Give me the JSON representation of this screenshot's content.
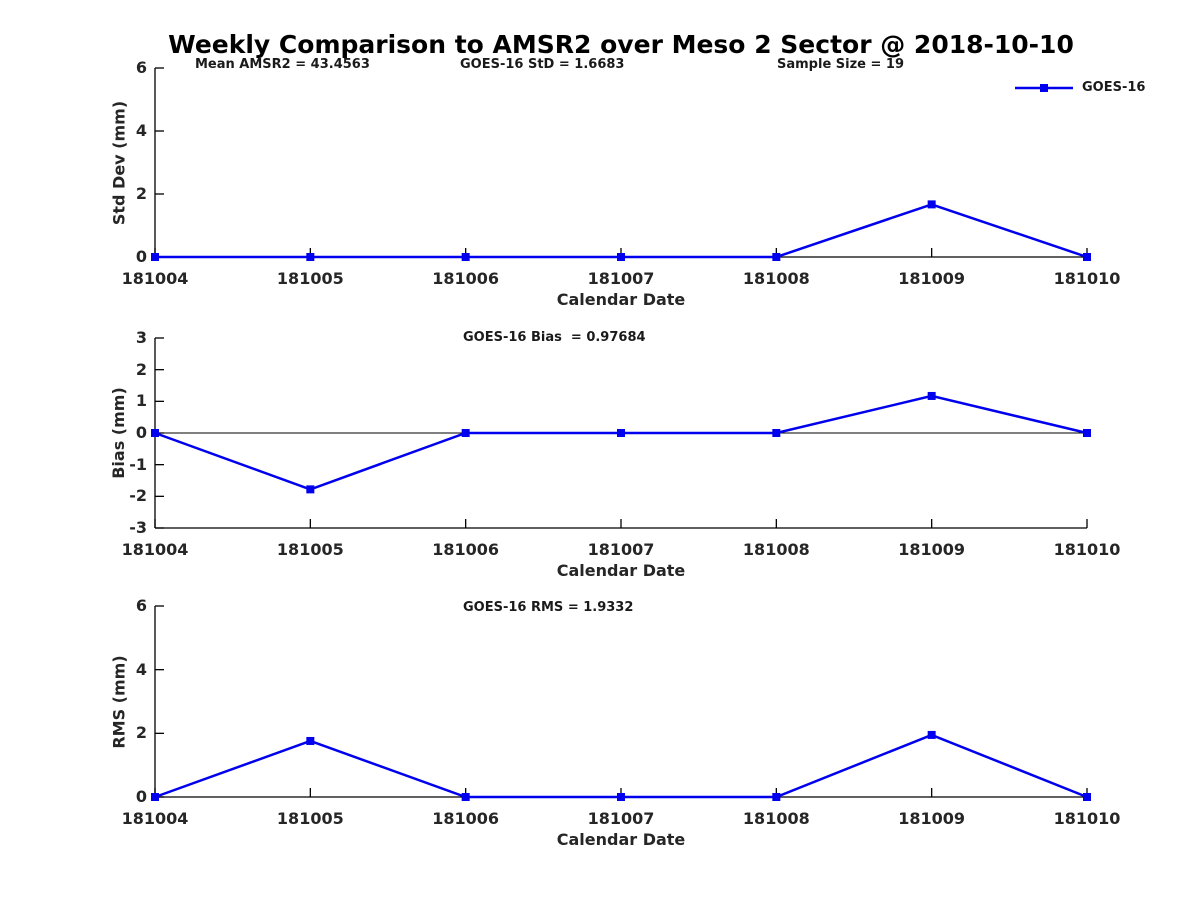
{
  "figure": {
    "title": "Weekly Comparison to AMSR2 over Meso 2 Sector @ 2018-10-10",
    "background": "#ffffff",
    "line_color": "#0000ee",
    "axis_color": "#000000",
    "text_color": "#262626",
    "legend": {
      "label": "GOES-16",
      "position": "top-right",
      "marker": "filled-square"
    },
    "stats": {
      "mean_amsr2": 43.4563,
      "goes16_std": 1.6683,
      "sample_size": 19,
      "goes16_bias": 0.97684,
      "goes16_rms": 1.9332
    }
  },
  "chart_data": [
    {
      "type": "line",
      "annotations": [
        "Mean AMSR2 = 43.4563",
        "GOES-16 StD = 1.6683",
        "Sample Size = 19"
      ],
      "xlabel": "Calendar Date",
      "ylabel": "Std Dev (mm)",
      "categories": [
        "181004",
        "181005",
        "181006",
        "181007",
        "181008",
        "181009",
        "181010"
      ],
      "series": [
        {
          "name": "GOES-16",
          "color": "#0000ee",
          "marker": "square",
          "values": [
            0,
            0,
            0,
            0,
            0,
            1.67,
            0
          ]
        }
      ],
      "ylim": [
        0,
        6
      ],
      "yticks": [
        0,
        2,
        4,
        6
      ],
      "grid": false,
      "zero_line": false
    },
    {
      "type": "line",
      "annotations": [
        "GOES-16 Bias  = 0.97684"
      ],
      "xlabel": "Calendar Date",
      "ylabel": "Bias (mm)",
      "categories": [
        "181004",
        "181005",
        "181006",
        "181007",
        "181008",
        "181009",
        "181010"
      ],
      "series": [
        {
          "name": "GOES-16",
          "color": "#0000ee",
          "marker": "square",
          "values": [
            0,
            -1.78,
            0,
            0,
            0,
            1.17,
            0
          ]
        }
      ],
      "ylim": [
        -3,
        3
      ],
      "yticks": [
        -3,
        -2,
        -1,
        0,
        1,
        2,
        3
      ],
      "grid": false,
      "zero_line": true
    },
    {
      "type": "line",
      "annotations": [
        "GOES-16 RMS = 1.9332"
      ],
      "xlabel": "Calendar Date",
      "ylabel": "RMS (mm)",
      "categories": [
        "181004",
        "181005",
        "181006",
        "181007",
        "181008",
        "181009",
        "181010"
      ],
      "series": [
        {
          "name": "GOES-16",
          "color": "#0000ee",
          "marker": "square",
          "values": [
            0,
            1.76,
            0,
            0,
            0,
            1.95,
            0
          ]
        }
      ],
      "ylim": [
        0,
        6
      ],
      "yticks": [
        0,
        2,
        4,
        6
      ],
      "grid": false,
      "zero_line": false
    }
  ]
}
